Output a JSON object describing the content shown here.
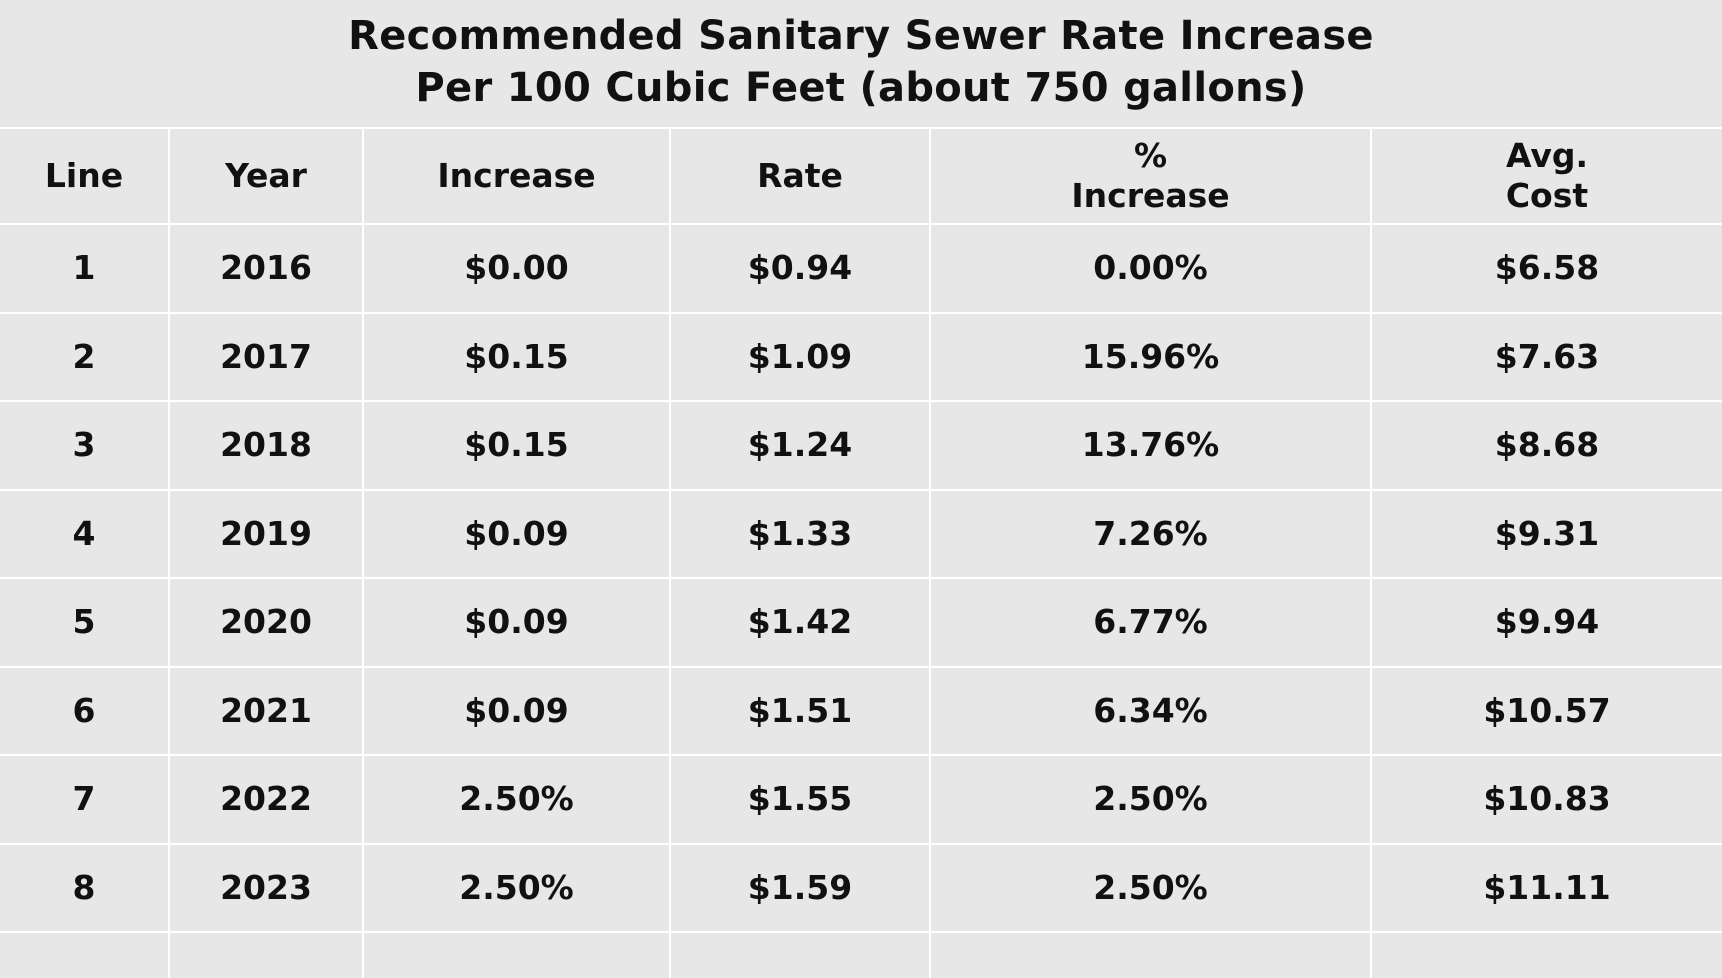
{
  "title": {
    "line1": "Recommended Sanitary Sewer Rate Increase",
    "line2": "Per 100 Cubic Feet (about 750 gallons)"
  },
  "table": {
    "headers": {
      "line": "Line",
      "year": "Year",
      "increase": "Increase",
      "rate": "Rate",
      "pct_increase_top": "%",
      "pct_increase_bottom": "Increase",
      "avg_cost_top": "Avg.",
      "avg_cost_bottom": "Cost"
    },
    "rows": [
      {
        "line": "1",
        "year": "2016",
        "increase": "$0.00",
        "rate": "$0.94",
        "pct_increase": "0.00%",
        "avg_cost": "$6.58"
      },
      {
        "line": "2",
        "year": "2017",
        "increase": "$0.15",
        "rate": "$1.09",
        "pct_increase": "15.96%",
        "avg_cost": "$7.63"
      },
      {
        "line": "3",
        "year": "2018",
        "increase": "$0.15",
        "rate": "$1.24",
        "pct_increase": "13.76%",
        "avg_cost": "$8.68"
      },
      {
        "line": "4",
        "year": "2019",
        "increase": "$0.09",
        "rate": "$1.33",
        "pct_increase": "7.26%",
        "avg_cost": "$9.31"
      },
      {
        "line": "5",
        "year": "2020",
        "increase": "$0.09",
        "rate": "$1.42",
        "pct_increase": "6.77%",
        "avg_cost": "$9.94"
      },
      {
        "line": "6",
        "year": "2021",
        "increase": "$0.09",
        "rate": "$1.51",
        "pct_increase": "6.34%",
        "avg_cost": "$10.57"
      },
      {
        "line": "7",
        "year": "2022",
        "increase": "2.50%",
        "rate": "$1.55",
        "pct_increase": "2.50%",
        "avg_cost": "$10.83"
      },
      {
        "line": "8",
        "year": "2023",
        "increase": "2.50%",
        "rate": "$1.59",
        "pct_increase": "2.50%",
        "avg_cost": "$11.11"
      }
    ]
  },
  "colors": {
    "background": "#e7e7e8",
    "grid_lines": "#ffffff",
    "text": "#111111"
  }
}
